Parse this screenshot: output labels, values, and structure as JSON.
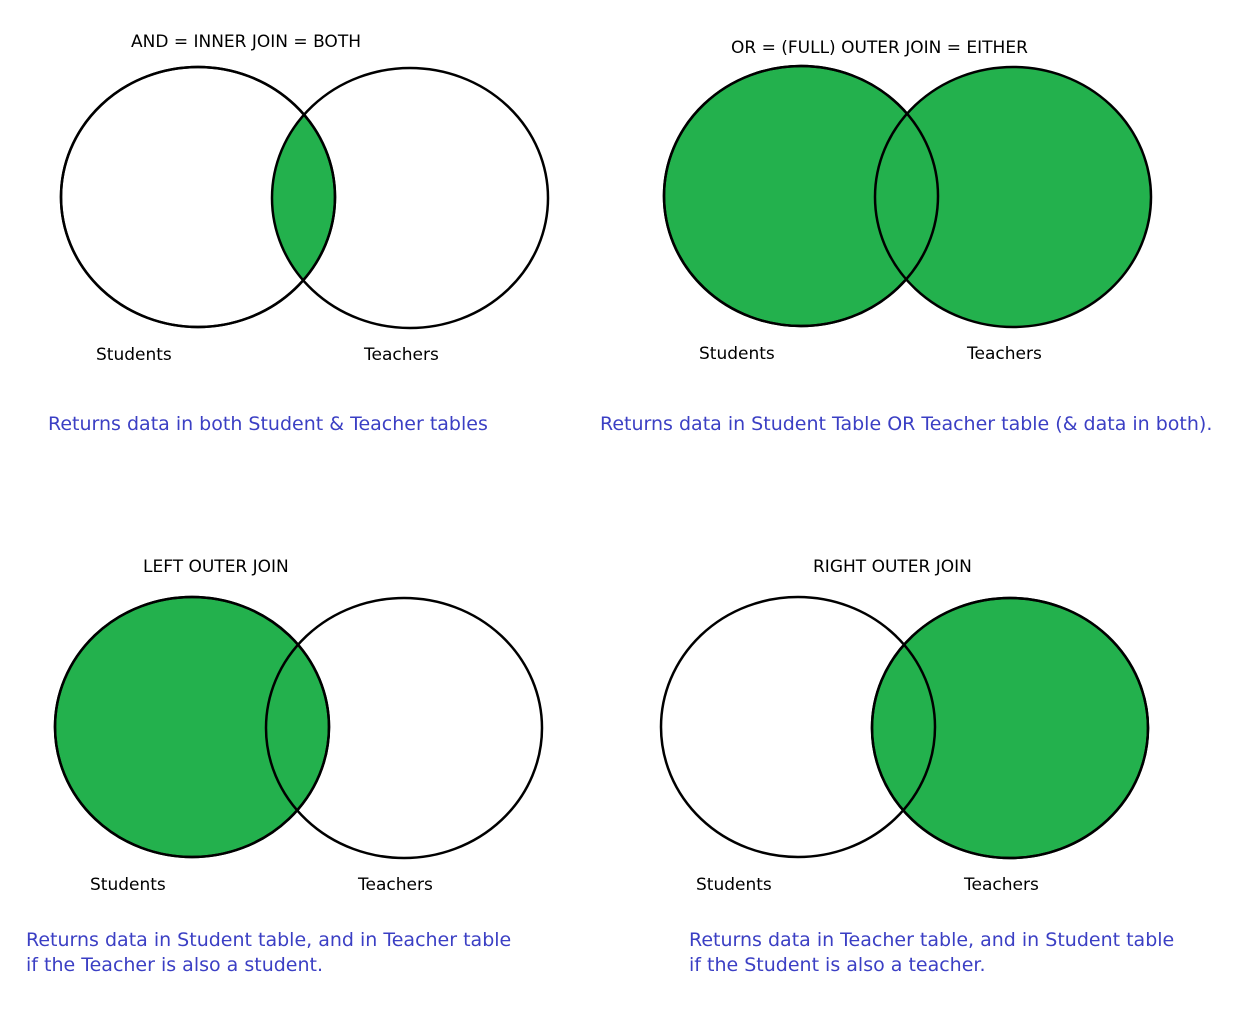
{
  "colors": {
    "fill": "#23b14d",
    "stroke": "#000000",
    "background": "#ffffff",
    "caption": "#3b3fc4"
  },
  "panels": [
    {
      "id": "inner",
      "title": "AND = INNER JOIN = BOTH",
      "left_label": "Students",
      "right_label": "Teachers",
      "shaded": "intersection",
      "caption_lines": [
        "Returns data in both Student & Teacher tables"
      ]
    },
    {
      "id": "full",
      "title": "OR = (FULL) OUTER JOIN = EITHER",
      "left_label": "Students",
      "right_label": "Teachers",
      "shaded": "union",
      "caption_lines": [
        "Returns data in Student Table OR Teacher table (& data in  both)."
      ]
    },
    {
      "id": "left",
      "title": "LEFT OUTER JOIN",
      "left_label": "Students",
      "right_label": "Teachers",
      "shaded": "left",
      "caption_lines": [
        "Returns data in Student table, and in Teacher table",
        "if the Teacher is also a student."
      ]
    },
    {
      "id": "right",
      "title": "RIGHT OUTER JOIN",
      "left_label": "Students",
      "right_label": "Teachers",
      "shaded": "right",
      "caption_lines": [
        "Returns data in Teacher table, and in Student table",
        "if the Student is also a teacher."
      ]
    }
  ]
}
